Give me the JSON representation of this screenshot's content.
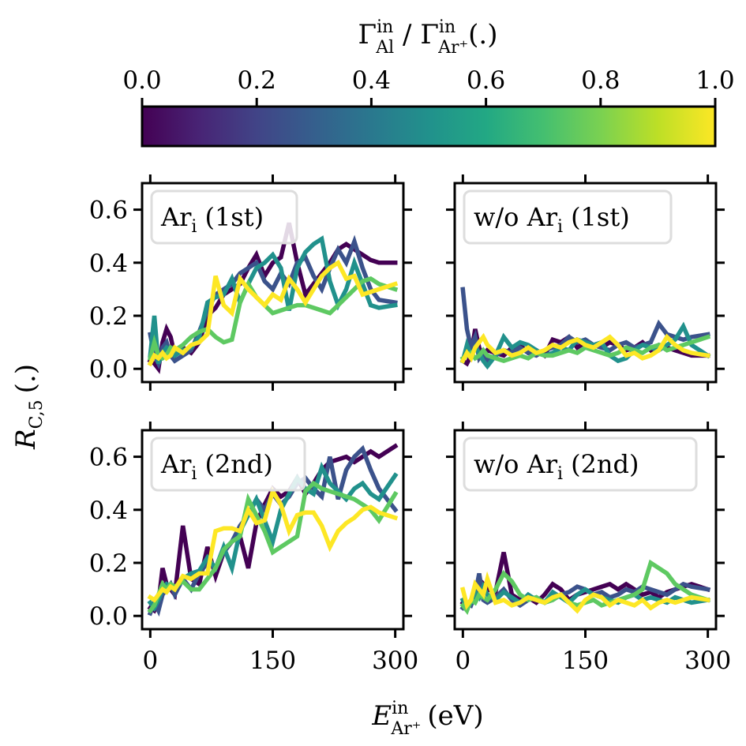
{
  "colorbar": {
    "label_main": "Γ",
    "label_sup1": "in",
    "label_sub1": "Al",
    "label_sep": " / ",
    "label_main2": "Γ",
    "label_sup2": "in",
    "label_sub2": "Ar⁺",
    "label_tail": "(.)",
    "ticks": [
      "0.0",
      "0.2",
      "0.4",
      "0.6",
      "0.8",
      "1.0"
    ],
    "range": [
      0,
      1
    ],
    "colormap": "viridis"
  },
  "axes": {
    "ylabel_main": "R",
    "ylabel_sub": "C,5",
    "ylabel_tail": "(.)",
    "xlabel_main": "E",
    "xlabel_sup": "in",
    "xlabel_sub": "Ar⁺",
    "xlabel_tail": "(eV)",
    "x_ticks": [
      "0",
      "150",
      "300"
    ],
    "y_ticks": [
      "0.0",
      "0.2",
      "0.4",
      "0.6"
    ]
  },
  "series_colors": {
    "0.0": "#440154",
    "0.25": "#3b528b",
    "0.5": "#21918c",
    "0.75": "#5ec962",
    "1.0": "#fde725"
  },
  "chart_data": [
    {
      "type": "line",
      "legend": "Ar_i (1st)",
      "legend_main": "Ar",
      "legend_sub": "i",
      "legend_tail": "(1st)",
      "xlim": [
        -10,
        310
      ],
      "ylim": [
        -0.05,
        0.7
      ],
      "x": [
        0,
        5,
        10,
        15,
        20,
        25,
        30,
        40,
        50,
        60,
        70,
        80,
        90,
        100,
        110,
        120,
        130,
        140,
        150,
        160,
        170,
        180,
        190,
        200,
        210,
        220,
        230,
        240,
        250,
        260,
        270,
        280,
        300
      ],
      "series": [
        {
          "ratio": 0.0,
          "values": [
            0.03,
            0.02,
            0.0,
            0.1,
            0.15,
            0.12,
            0.05,
            0.08,
            0.06,
            0.1,
            0.2,
            0.23,
            0.28,
            0.3,
            0.32,
            0.38,
            0.43,
            0.35,
            0.4,
            0.42,
            0.55,
            0.4,
            0.28,
            0.32,
            0.36,
            0.4,
            0.45,
            0.47,
            0.45,
            0.43,
            0.41,
            0.4,
            0.4
          ]
        },
        {
          "ratio": 0.25,
          "values": [
            0.13,
            0.05,
            0.02,
            0.08,
            0.1,
            0.05,
            0.03,
            0.05,
            0.07,
            0.14,
            0.22,
            0.28,
            0.3,
            0.32,
            0.36,
            0.38,
            0.4,
            0.33,
            0.3,
            0.36,
            0.32,
            0.4,
            0.42,
            0.35,
            0.3,
            0.38,
            0.45,
            0.4,
            0.48,
            0.38,
            0.3,
            0.26,
            0.25
          ]
        },
        {
          "ratio": 0.5,
          "values": [
            0.05,
            0.2,
            0.02,
            0.06,
            0.08,
            0.07,
            0.05,
            0.07,
            0.08,
            0.12,
            0.25,
            0.27,
            0.28,
            0.34,
            0.25,
            0.32,
            0.38,
            0.4,
            0.43,
            0.38,
            0.22,
            0.38,
            0.44,
            0.47,
            0.49,
            0.33,
            0.24,
            0.3,
            0.4,
            0.32,
            0.24,
            0.23,
            0.24
          ]
        },
        {
          "ratio": 0.75,
          "values": [
            0.04,
            0.1,
            0.05,
            0.04,
            0.05,
            0.08,
            0.07,
            0.09,
            0.12,
            0.14,
            0.15,
            0.12,
            0.1,
            0.11,
            0.25,
            0.32,
            0.27,
            0.24,
            0.21,
            0.22,
            0.23,
            0.24,
            0.24,
            0.23,
            0.22,
            0.21,
            0.24,
            0.27,
            0.3,
            0.33,
            0.34,
            0.32,
            0.3
          ]
        },
        {
          "ratio": 1.0,
          "values": [
            0.02,
            0.05,
            0.04,
            0.06,
            0.04,
            0.05,
            0.08,
            0.06,
            0.09,
            0.1,
            0.13,
            0.35,
            0.24,
            0.21,
            0.34,
            0.3,
            0.27,
            0.24,
            0.28,
            0.26,
            0.34,
            0.3,
            0.25,
            0.3,
            0.35,
            0.38,
            0.4,
            0.34,
            0.35,
            0.28,
            0.29,
            0.3,
            0.32
          ]
        }
      ]
    },
    {
      "type": "line",
      "legend": "w/o Ar_i (1st)",
      "legend_main": "w/o Ar",
      "legend_sub": "i",
      "legend_tail": "(1st)",
      "xlim": [
        -10,
        310
      ],
      "ylim": [
        -0.05,
        0.7
      ],
      "x": [
        0,
        5,
        10,
        15,
        20,
        25,
        30,
        40,
        50,
        60,
        70,
        80,
        90,
        100,
        110,
        120,
        130,
        140,
        150,
        160,
        170,
        180,
        190,
        200,
        210,
        220,
        230,
        240,
        250,
        260,
        270,
        280,
        300
      ],
      "series": [
        {
          "ratio": 0.0,
          "values": [
            0.03,
            0.02,
            0.05,
            0.15,
            0.08,
            0.04,
            0.07,
            0.06,
            0.05,
            0.08,
            0.09,
            0.06,
            0.07,
            0.05,
            0.11,
            0.1,
            0.12,
            0.08,
            0.1,
            0.09,
            0.08,
            0.1,
            0.09,
            0.07,
            0.08,
            0.1,
            0.07,
            0.09,
            0.08,
            0.07,
            0.06,
            0.05,
            0.05
          ]
        },
        {
          "ratio": 0.25,
          "values": [
            0.3,
            0.15,
            0.08,
            0.12,
            0.04,
            0.06,
            0.03,
            0.05,
            0.07,
            0.06,
            0.08,
            0.06,
            0.05,
            0.07,
            0.08,
            0.09,
            0.12,
            0.1,
            0.11,
            0.09,
            0.08,
            0.07,
            0.09,
            0.1,
            0.08,
            0.09,
            0.1,
            0.17,
            0.13,
            0.12,
            0.11,
            0.12,
            0.13
          ]
        },
        {
          "ratio": 0.5,
          "values": [
            0.03,
            0.09,
            0.05,
            0.08,
            0.06,
            0.03,
            0.01,
            0.05,
            0.12,
            0.08,
            0.1,
            0.09,
            0.07,
            0.05,
            0.06,
            0.08,
            0.07,
            0.11,
            0.1,
            0.09,
            0.1,
            0.05,
            0.03,
            0.04,
            0.07,
            0.09,
            0.08,
            0.07,
            0.09,
            0.11,
            0.16,
            0.09,
            0.05
          ]
        },
        {
          "ratio": 0.75,
          "values": [
            0.04,
            0.05,
            0.06,
            0.04,
            0.05,
            0.07,
            0.05,
            0.04,
            0.03,
            0.04,
            0.05,
            0.04,
            0.06,
            0.05,
            0.05,
            0.06,
            0.07,
            0.06,
            0.08,
            0.07,
            0.06,
            0.05,
            0.06,
            0.08,
            0.07,
            0.06,
            0.08,
            0.09,
            0.07,
            0.08,
            0.09,
            0.1,
            0.12
          ]
        },
        {
          "ratio": 1.0,
          "values": [
            0.03,
            0.06,
            0.04,
            0.08,
            0.1,
            0.12,
            0.09,
            0.06,
            0.07,
            0.05,
            0.06,
            0.08,
            0.06,
            0.07,
            0.09,
            0.08,
            0.1,
            0.11,
            0.09,
            0.08,
            0.1,
            0.12,
            0.09,
            0.05,
            0.06,
            0.04,
            0.05,
            0.07,
            0.12,
            0.09,
            0.07,
            0.06,
            0.05
          ]
        }
      ]
    },
    {
      "type": "line",
      "legend": "Ar_i (2nd)",
      "legend_main": "Ar",
      "legend_sub": "i",
      "legend_tail": "(2nd)",
      "xlim": [
        -10,
        310
      ],
      "ylim": [
        -0.05,
        0.7
      ],
      "x": [
        0,
        5,
        10,
        15,
        20,
        25,
        30,
        40,
        50,
        60,
        70,
        80,
        90,
        100,
        110,
        120,
        130,
        140,
        150,
        160,
        170,
        180,
        190,
        200,
        210,
        220,
        230,
        240,
        250,
        260,
        270,
        280,
        300
      ],
      "series": [
        {
          "ratio": 0.0,
          "values": [
            0.03,
            0.02,
            0.05,
            0.18,
            0.12,
            0.1,
            0.08,
            0.34,
            0.14,
            0.12,
            0.26,
            0.15,
            0.24,
            0.28,
            0.3,
            0.18,
            0.35,
            0.42,
            0.48,
            0.45,
            0.47,
            0.52,
            0.46,
            0.5,
            0.55,
            0.58,
            0.59,
            0.6,
            0.58,
            0.6,
            0.62,
            0.6,
            0.64
          ]
        },
        {
          "ratio": 0.25,
          "values": [
            0.01,
            0.05,
            0.02,
            0.08,
            0.1,
            0.12,
            0.08,
            0.14,
            0.1,
            0.16,
            0.2,
            0.18,
            0.24,
            0.28,
            0.34,
            0.38,
            0.44,
            0.4,
            0.46,
            0.42,
            0.45,
            0.5,
            0.52,
            0.48,
            0.45,
            0.6,
            0.44,
            0.55,
            0.6,
            0.63,
            0.55,
            0.48,
            0.4
          ]
        },
        {
          "ratio": 0.5,
          "values": [
            0.05,
            0.03,
            0.06,
            0.1,
            0.12,
            0.11,
            0.1,
            0.14,
            0.16,
            0.17,
            0.22,
            0.18,
            0.26,
            0.18,
            0.32,
            0.38,
            0.44,
            0.36,
            0.28,
            0.4,
            0.46,
            0.52,
            0.48,
            0.46,
            0.56,
            0.5,
            0.47,
            0.44,
            0.48,
            0.5,
            0.46,
            0.44,
            0.53
          ]
        },
        {
          "ratio": 0.75,
          "values": [
            0.02,
            0.04,
            0.08,
            0.12,
            0.1,
            0.12,
            0.11,
            0.13,
            0.1,
            0.1,
            0.14,
            0.18,
            0.25,
            0.28,
            0.3,
            0.44,
            0.38,
            0.32,
            0.24,
            0.26,
            0.28,
            0.3,
            0.47,
            0.5,
            0.48,
            0.47,
            0.46,
            0.45,
            0.44,
            0.42,
            0.4,
            0.36,
            0.46
          ]
        },
        {
          "ratio": 1.0,
          "values": [
            0.07,
            0.06,
            0.08,
            0.1,
            0.09,
            0.11,
            0.1,
            0.15,
            0.14,
            0.16,
            0.16,
            0.32,
            0.33,
            0.33,
            0.32,
            0.4,
            0.35,
            0.36,
            0.47,
            0.42,
            0.32,
            0.38,
            0.39,
            0.39,
            0.34,
            0.26,
            0.32,
            0.35,
            0.37,
            0.4,
            0.41,
            0.39,
            0.37
          ]
        }
      ]
    },
    {
      "type": "line",
      "legend": "w/o Ar_i (2nd)",
      "legend_main": "w/o Ar",
      "legend_sub": "i",
      "legend_tail": "(2nd)",
      "xlim": [
        -10,
        310
      ],
      "ylim": [
        -0.05,
        0.7
      ],
      "x": [
        0,
        5,
        10,
        15,
        20,
        25,
        30,
        40,
        50,
        60,
        70,
        80,
        90,
        100,
        110,
        120,
        130,
        140,
        150,
        160,
        170,
        180,
        190,
        200,
        210,
        220,
        230,
        240,
        250,
        260,
        270,
        280,
        300
      ],
      "series": [
        {
          "ratio": 0.0,
          "values": [
            0.05,
            0.04,
            0.06,
            0.1,
            0.08,
            0.12,
            0.1,
            0.09,
            0.24,
            0.08,
            0.06,
            0.07,
            0.05,
            0.08,
            0.12,
            0.1,
            0.06,
            0.08,
            0.09,
            0.1,
            0.11,
            0.12,
            0.1,
            0.12,
            0.1,
            0.08,
            0.09,
            0.07,
            0.09,
            0.1,
            0.11,
            0.12,
            0.1
          ]
        },
        {
          "ratio": 0.25,
          "values": [
            0.03,
            0.05,
            0.04,
            0.08,
            0.16,
            0.06,
            0.05,
            0.07,
            0.1,
            0.06,
            0.04,
            0.06,
            0.07,
            0.05,
            0.06,
            0.08,
            0.09,
            0.11,
            0.1,
            0.08,
            0.09,
            0.07,
            0.08,
            0.1,
            0.09,
            0.11,
            0.1,
            0.09,
            0.08,
            0.1,
            0.12,
            0.11,
            0.1
          ]
        },
        {
          "ratio": 0.5,
          "values": [
            0.06,
            0.03,
            0.05,
            0.09,
            0.07,
            0.11,
            0.08,
            0.06,
            0.09,
            0.07,
            0.05,
            0.08,
            0.06,
            0.05,
            0.09,
            0.07,
            0.05,
            0.08,
            0.1,
            0.08,
            0.07,
            0.06,
            0.05,
            0.07,
            0.08,
            0.06,
            0.07,
            0.06,
            0.05,
            0.07,
            0.06,
            0.05,
            0.06
          ]
        },
        {
          "ratio": 0.75,
          "values": [
            0.04,
            0.02,
            0.06,
            0.05,
            0.08,
            0.07,
            0.06,
            0.1,
            0.16,
            0.13,
            0.08,
            0.06,
            0.07,
            0.05,
            0.06,
            0.08,
            0.05,
            0.04,
            0.05,
            0.06,
            0.04,
            0.05,
            0.06,
            0.07,
            0.08,
            0.1,
            0.2,
            0.18,
            0.16,
            0.12,
            0.1,
            0.08,
            0.06
          ]
        },
        {
          "ratio": 1.0,
          "values": [
            0.1,
            0.04,
            0.06,
            0.12,
            0.1,
            0.08,
            0.14,
            0.05,
            0.06,
            0.04,
            0.05,
            0.07,
            0.06,
            0.05,
            0.07,
            0.08,
            0.05,
            0.02,
            0.06,
            0.08,
            0.07,
            0.04,
            0.06,
            0.05,
            0.04,
            0.06,
            0.03,
            0.05,
            0.06,
            0.05,
            0.06,
            0.07,
            0.06
          ]
        }
      ]
    }
  ]
}
